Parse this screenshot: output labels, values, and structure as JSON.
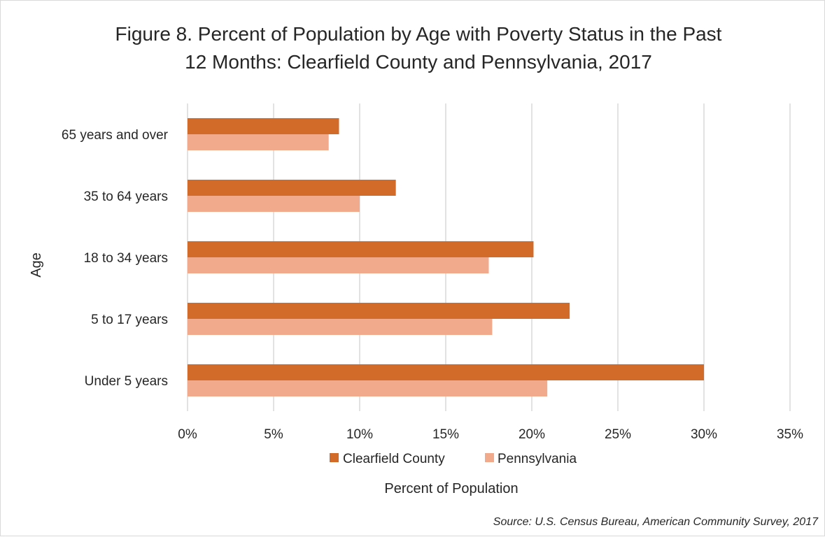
{
  "chart_data": {
    "type": "bar",
    "orientation": "horizontal",
    "title_lines": [
      "Figure 8. Percent of Population by Age with Poverty Status in the Past",
      "12 Months: Clearfield County and Pennsylvania,  2017"
    ],
    "xlabel": "Percent of Population",
    "ylabel": "Age",
    "categories": [
      "65 years and over",
      "35 to 64 years",
      "18 to 34 years",
      "5 to 17 years",
      "Under 5 years"
    ],
    "series": [
      {
        "name": "Clearfield County",
        "color": "#d26b2a",
        "values": [
          8.8,
          12.1,
          20.1,
          22.2,
          30.0
        ]
      },
      {
        "name": "Pennsylvania",
        "color": "#f2aa8c",
        "values": [
          8.2,
          10.0,
          17.5,
          17.7,
          20.9
        ]
      }
    ],
    "xlim": [
      0,
      35
    ],
    "x_ticks": [
      0,
      5,
      10,
      15,
      20,
      25,
      30,
      35
    ],
    "x_tick_labels": [
      "0%",
      "5%",
      "10%",
      "15%",
      "20%",
      "25%",
      "30%",
      "35%"
    ],
    "grid": "vertical",
    "legend_position": "bottom",
    "source": "Source: U.S. Census Bureau, American Community Survey, 2017"
  }
}
